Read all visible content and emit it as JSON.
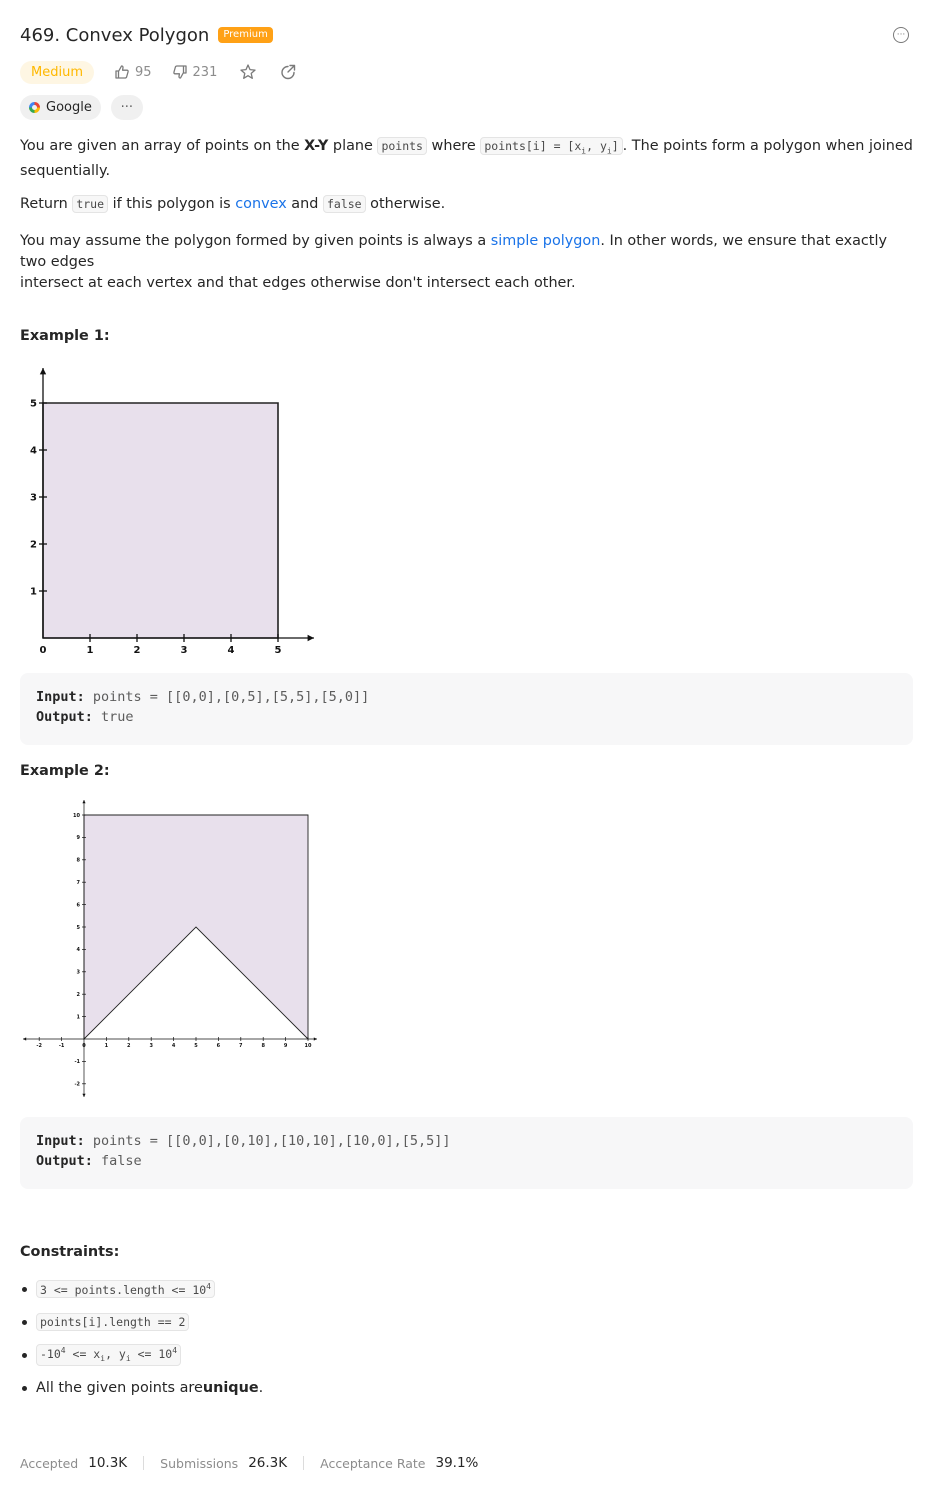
{
  "header": {
    "title": "469. Convex Polygon",
    "badge": "Premium",
    "difficulty": "Medium",
    "likes": "95",
    "dislikes": "231",
    "company_tag": "Google",
    "more_tags": "···"
  },
  "description": {
    "p1_a": "You are given an array of points on the ",
    "p1_bold": "X-Y",
    "p1_b": " plane ",
    "p1_code1": "points",
    "p1_c": " where ",
    "p1_code2_a": "points[i] = [x",
    "p1_code2_sub1": "i",
    "p1_code2_b": ", y",
    "p1_code2_sub2": "i",
    "p1_code2_c": "]",
    "p1_d": ". The points form a polygon when joined",
    "p1_e": "sequentially.",
    "p2_a": "Return ",
    "p2_code1": "true",
    "p2_b": " if this polygon is ",
    "p2_link": "convex",
    "p2_c": " and ",
    "p2_code2": "false",
    "p2_d": " otherwise.",
    "p3_a": "You may assume the polygon formed by given points is always a ",
    "p3_link": "simple polygon",
    "p3_b": ". In other words, we ensure that exactly two edges",
    "p3_c": "intersect at each vertex and that edges otherwise don't intersect each other."
  },
  "examples": [
    {
      "heading": "Example 1:",
      "input_label": "Input:",
      "input_value": " points = [[0,0],[0,5],[5,5],[5,0]]",
      "output_label": "Output:",
      "output_value": " true"
    },
    {
      "heading": "Example 2:",
      "input_label": "Input:",
      "input_value": " points = [[0,0],[0,10],[10,10],[10,0],[5,5]]",
      "output_label": "Output:",
      "output_value": " false"
    }
  ],
  "figures": {
    "fig1": {
      "x_ticks": [
        "0",
        "1",
        "2",
        "3",
        "4",
        "5"
      ],
      "y_ticks": [
        "1",
        "2",
        "3",
        "4",
        "5"
      ],
      "polygon": [
        [
          0,
          0
        ],
        [
          0,
          5
        ],
        [
          5,
          5
        ],
        [
          5,
          0
        ]
      ],
      "fill_color": "#e8e0ec"
    },
    "fig2": {
      "x_ticks": [
        "-2",
        "-1",
        "0",
        "1",
        "2",
        "3",
        "4",
        "5",
        "6",
        "7",
        "8",
        "9",
        "10"
      ],
      "y_ticks": [
        "-2",
        "-1",
        "1",
        "2",
        "3",
        "4",
        "5",
        "6",
        "7",
        "8",
        "9",
        "10"
      ],
      "polygon": [
        [
          0,
          0
        ],
        [
          0,
          10
        ],
        [
          10,
          10
        ],
        [
          10,
          0
        ],
        [
          5,
          5
        ]
      ],
      "fill_color": "#e8e0ec"
    }
  },
  "constraints": {
    "heading": "Constraints:",
    "c1_a": "3 <= points.length <= 10",
    "c1_sup": "4",
    "c2": "points[i].length == 2",
    "c3_a": "-10",
    "c3_sup1": "4",
    "c3_b": " <= x",
    "c3_sub1": "i",
    "c3_c": ", y",
    "c3_sub2": "i",
    "c3_d": " <= 10",
    "c3_sup2": "4",
    "c4_a": "All the given points are ",
    "c4_bold": "unique",
    "c4_b": "."
  },
  "stats": {
    "accepted_label": "Accepted",
    "accepted_value": "10.3K",
    "submissions_label": "Submissions",
    "submissions_value": "26.3K",
    "rate_label": "Acceptance Rate",
    "rate_value": "39.1%"
  }
}
